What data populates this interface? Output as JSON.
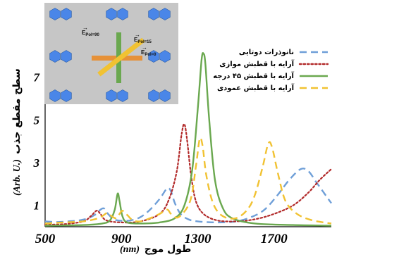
{
  "chart_data": {
    "type": "line",
    "xlabel_text": "طول موج",
    "xlabel_unit": "(nm)",
    "ylabel_text": "سطح مقطع جذب",
    "ylabel_unit": "(Arb. U.)",
    "xlim": [
      500,
      2000
    ],
    "ylim": [
      0,
      8.8
    ],
    "x_ticks": [
      500,
      900,
      1300,
      1700
    ],
    "y_ticks": [
      1,
      3,
      5,
      7
    ],
    "x_tick_labels": [
      "500",
      "900",
      "1300",
      "1700"
    ],
    "y_tick_labels": [
      "1",
      "3",
      "5",
      "7"
    ],
    "legend_position": "top-right",
    "series": [
      {
        "name": "نانوذرات دوتایی",
        "color": "#6f9fd8",
        "dash": "dashed",
        "points": [
          [
            500,
            0.25
          ],
          [
            560,
            0.22
          ],
          [
            620,
            0.25
          ],
          [
            680,
            0.3
          ],
          [
            720,
            0.38
          ],
          [
            760,
            0.55
          ],
          [
            790,
            0.8
          ],
          [
            810,
            0.85
          ],
          [
            830,
            0.6
          ],
          [
            860,
            0.35
          ],
          [
            900,
            0.28
          ],
          [
            950,
            0.3
          ],
          [
            1000,
            0.45
          ],
          [
            1050,
            0.8
          ],
          [
            1100,
            1.3
          ],
          [
            1140,
            1.8
          ],
          [
            1160,
            1.65
          ],
          [
            1180,
            1.1
          ],
          [
            1210,
            0.6
          ],
          [
            1250,
            0.35
          ],
          [
            1300,
            0.25
          ],
          [
            1400,
            0.2
          ],
          [
            1500,
            0.25
          ],
          [
            1580,
            0.45
          ],
          [
            1650,
            0.8
          ],
          [
            1720,
            1.5
          ],
          [
            1780,
            2.2
          ],
          [
            1840,
            2.7
          ],
          [
            1880,
            2.6
          ],
          [
            1920,
            2.1
          ],
          [
            1960,
            1.6
          ],
          [
            2000,
            1.1
          ]
        ]
      },
      {
        "name": "آرایه با قطبش موازی",
        "color": "#b22a2a",
        "dash": "dotted",
        "points": [
          [
            500,
            0.1
          ],
          [
            600,
            0.12
          ],
          [
            700,
            0.25
          ],
          [
            740,
            0.5
          ],
          [
            770,
            0.75
          ],
          [
            790,
            0.6
          ],
          [
            820,
            0.3
          ],
          [
            900,
            0.2
          ],
          [
            1000,
            0.25
          ],
          [
            1100,
            0.6
          ],
          [
            1150,
            1.3
          ],
          [
            1190,
            2.6
          ],
          [
            1215,
            4.3
          ],
          [
            1230,
            4.8
          ],
          [
            1245,
            4.0
          ],
          [
            1265,
            2.4
          ],
          [
            1290,
            1.2
          ],
          [
            1330,
            0.6
          ],
          [
            1400,
            0.3
          ],
          [
            1500,
            0.25
          ],
          [
            1600,
            0.35
          ],
          [
            1700,
            0.6
          ],
          [
            1800,
            1.0
          ],
          [
            1880,
            1.6
          ],
          [
            1940,
            2.2
          ],
          [
            2000,
            2.7
          ]
        ]
      },
      {
        "name": "آرایه با قطبش ۴۵ درجه",
        "color": "#6aa84f",
        "dash": "solid",
        "points": [
          [
            500,
            0.05
          ],
          [
            700,
            0.08
          ],
          [
            800,
            0.15
          ],
          [
            840,
            0.3
          ],
          [
            865,
            0.8
          ],
          [
            880,
            1.55
          ],
          [
            890,
            1.2
          ],
          [
            905,
            0.5
          ],
          [
            930,
            0.2
          ],
          [
            1000,
            0.15
          ],
          [
            1100,
            0.2
          ],
          [
            1180,
            0.4
          ],
          [
            1230,
            1.0
          ],
          [
            1270,
            2.6
          ],
          [
            1300,
            5.5
          ],
          [
            1320,
            7.8
          ],
          [
            1330,
            8.1
          ],
          [
            1340,
            7.6
          ],
          [
            1360,
            5.0
          ],
          [
            1390,
            2.2
          ],
          [
            1430,
            0.9
          ],
          [
            1480,
            0.4
          ],
          [
            1600,
            0.15
          ],
          [
            1800,
            0.08
          ],
          [
            2000,
            0.05
          ]
        ]
      },
      {
        "name": "آرایه با قطبش عمودی",
        "color": "#f1c232",
        "dash": "dashed",
        "points": [
          [
            500,
            0.15
          ],
          [
            600,
            0.2
          ],
          [
            700,
            0.25
          ],
          [
            760,
            0.35
          ],
          [
            800,
            0.5
          ],
          [
            825,
            0.65
          ],
          [
            840,
            0.55
          ],
          [
            870,
            0.4
          ],
          [
            890,
            0.6
          ],
          [
            905,
            0.75
          ],
          [
            930,
            0.55
          ],
          [
            960,
            0.3
          ],
          [
            1000,
            0.25
          ],
          [
            1050,
            0.4
          ],
          [
            1100,
            0.6
          ],
          [
            1140,
            0.8
          ],
          [
            1160,
            0.6
          ],
          [
            1200,
            0.45
          ],
          [
            1260,
            1.2
          ],
          [
            1290,
            2.8
          ],
          [
            1310,
            4.1
          ],
          [
            1325,
            3.8
          ],
          [
            1345,
            2.4
          ],
          [
            1380,
            1.1
          ],
          [
            1430,
            0.5
          ],
          [
            1500,
            0.4
          ],
          [
            1560,
            0.8
          ],
          [
            1600,
            1.5
          ],
          [
            1640,
            2.8
          ],
          [
            1670,
            3.9
          ],
          [
            1690,
            3.7
          ],
          [
            1720,
            2.5
          ],
          [
            1760,
            1.2
          ],
          [
            1820,
            0.6
          ],
          [
            1900,
            0.3
          ],
          [
            2000,
            0.15
          ]
        ]
      }
    ]
  },
  "inset": {
    "label_pol90": "E",
    "label_pol90_sub": "Pol=90",
    "label_pol15": "E",
    "label_pol15_sub": "Pol=15",
    "label_pol0": "E",
    "label_pol0_sub": "Pol=0",
    "background": "#c6c6c6",
    "hex_color": "#4a86e8",
    "arrow_v_color": "#6aa84f",
    "arrow_h_color": "#e69138",
    "arrow_d_color": "#f1c232"
  }
}
